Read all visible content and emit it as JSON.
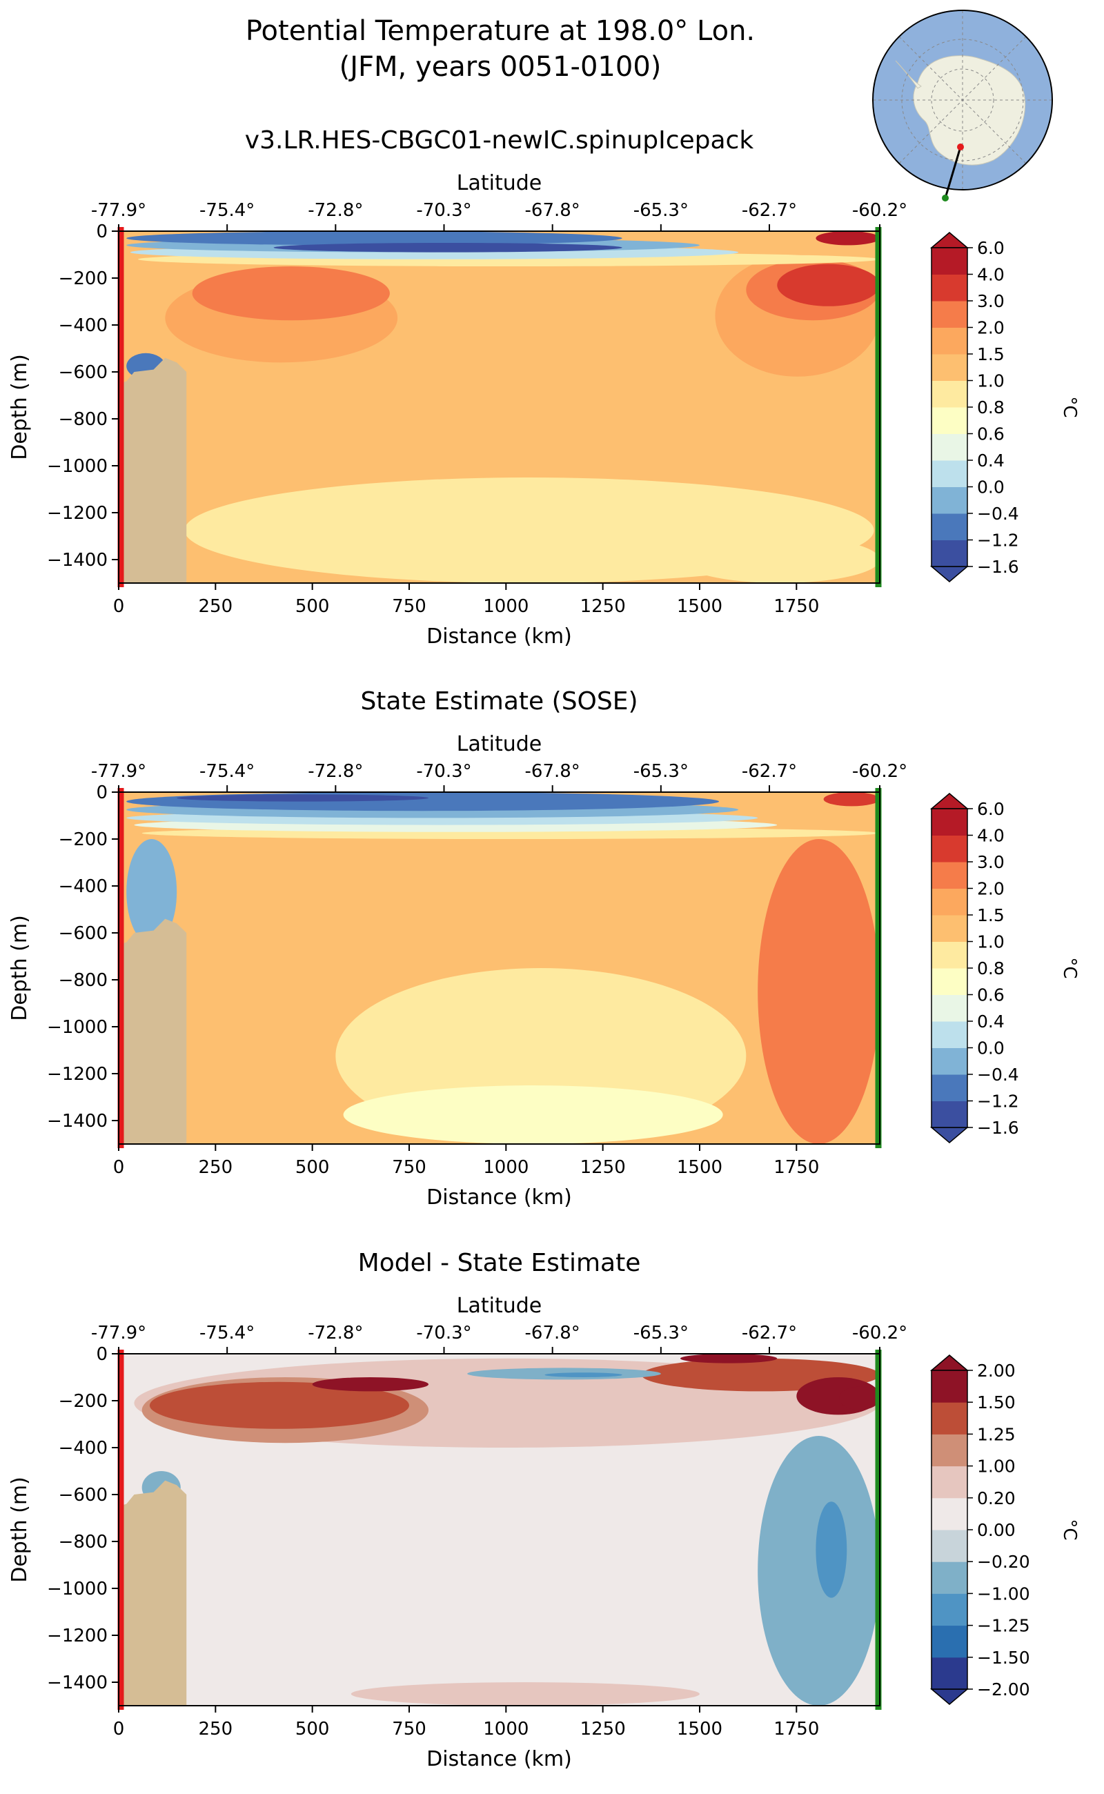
{
  "figure": {
    "title_line1": "Potential Temperature at 198.0° Lon.",
    "title_line2": "(JFM, years 0051-0100)"
  },
  "colors": {
    "land": "#d5bd95",
    "transect_start": "#e41a1c",
    "transect_end": "#1e8a1e",
    "ocean_inset": "#8fb1dc",
    "land_inset": "#efefe0",
    "line": "#000000"
  },
  "inset_map": {
    "type": "south-polar-stereographic",
    "transect_start_marker": "red-dot",
    "transect_end_marker": "green-dot"
  },
  "chart_data": [
    {
      "type": "heatmap",
      "title": "v3.LR.HES-CBGC01-newIC.spinupIcepack",
      "xlabel": "Distance (km)",
      "ylabel": "Depth (m)",
      "top_axis_label": "Latitude",
      "xlim": [
        0,
        1965
      ],
      "ylim": [
        -1500,
        0
      ],
      "x_ticks": [
        0,
        250,
        500,
        750,
        1000,
        1250,
        1500,
        1750
      ],
      "y_ticks": [
        0,
        -200,
        -400,
        -600,
        -800,
        -1000,
        -1200,
        -1400
      ],
      "top_ticks_km": [
        0,
        280,
        560,
        840,
        1120,
        1400,
        1680,
        1965
      ],
      "top_tick_labels": [
        "-77.9°",
        "-75.4°",
        "-72.8°",
        "-70.3°",
        "-67.8°",
        "-65.3°",
        "-62.7°",
        "-60.2°"
      ],
      "colorbar": {
        "label": "°C",
        "levels": [
          "−1.6",
          "−1.2",
          "−0.4",
          "0.0",
          "0.4",
          "0.6",
          "0.8",
          "1.0",
          "1.5",
          "2.0",
          "3.0",
          "4.0",
          "6.0"
        ],
        "colors": [
          "#3b4fa0",
          "#4a78bb",
          "#80b3d6",
          "#bde0ec",
          "#e9f6e6",
          "#fdfec4",
          "#feeaa0",
          "#fdbf70",
          "#fca85e",
          "#f57c4a",
          "#d83a2e",
          "#b51a26"
        ],
        "extend": "both"
      },
      "fields": {
        "background_value": 1.2,
        "regions": [
          {
            "value": 0.85,
            "x": [
              170,
              1950
            ],
            "depth": [
              -1050,
              -1500
            ]
          },
          {
            "value": 0.85,
            "x": [
              1450,
              1965
            ],
            "depth": [
              -1300,
              -1500
            ]
          },
          {
            "value": 1.7,
            "x": [
              120,
              720
            ],
            "depth": [
              -180,
              -560
            ]
          },
          {
            "value": 2.4,
            "x": [
              190,
              700
            ],
            "depth": [
              -150,
              -380
            ]
          },
          {
            "value": 1.7,
            "x": [
              1540,
              1965
            ],
            "depth": [
              -100,
              -620
            ]
          },
          {
            "value": 2.4,
            "x": [
              1620,
              1965
            ],
            "depth": [
              -120,
              -380
            ]
          },
          {
            "value": 3.5,
            "x": [
              1700,
              1965
            ],
            "depth": [
              -140,
              -320
            ]
          },
          {
            "value": 0.9,
            "x": [
              50,
              1965
            ],
            "depth": [
              -90,
              -150
            ]
          },
          {
            "value": 0.2,
            "x": [
              30,
              1600
            ],
            "depth": [
              -60,
              -120
            ]
          },
          {
            "value": -0.2,
            "x": [
              20,
              1500
            ],
            "depth": [
              -30,
              -90
            ]
          },
          {
            "value": -0.8,
            "x": [
              20,
              1300
            ],
            "depth": [
              0,
              -60
            ]
          },
          {
            "value": -1.4,
            "x": [
              400,
              1300
            ],
            "depth": [
              -50,
              -90
            ]
          },
          {
            "value": -0.8,
            "x": [
              20,
              120
            ],
            "depth": [
              -520,
              -630
            ]
          },
          {
            "value": 4.5,
            "x": [
              1800,
              1965
            ],
            "depth": [
              0,
              -60
            ]
          }
        ]
      }
    },
    {
      "type": "heatmap",
      "title": "State Estimate (SOSE)",
      "xlabel": "Distance (km)",
      "ylabel": "Depth (m)",
      "top_axis_label": "Latitude",
      "xlim": [
        0,
        1965
      ],
      "ylim": [
        -1500,
        0
      ],
      "x_ticks": [
        0,
        250,
        500,
        750,
        1000,
        1250,
        1500,
        1750
      ],
      "y_ticks": [
        0,
        -200,
        -400,
        -600,
        -800,
        -1000,
        -1200,
        -1400
      ],
      "top_ticks_km": [
        0,
        280,
        560,
        840,
        1120,
        1400,
        1680,
        1965
      ],
      "top_tick_labels": [
        "-77.9°",
        "-75.4°",
        "-72.8°",
        "-70.3°",
        "-67.8°",
        "-65.3°",
        "-62.7°",
        "-60.2°"
      ],
      "colorbar": {
        "label": "°C",
        "levels": [
          "−1.6",
          "−1.2",
          "−0.4",
          "0.0",
          "0.4",
          "0.6",
          "0.8",
          "1.0",
          "1.5",
          "2.0",
          "3.0",
          "4.0",
          "6.0"
        ],
        "colors": [
          "#3b4fa0",
          "#4a78bb",
          "#80b3d6",
          "#bde0ec",
          "#e9f6e6",
          "#fdfec4",
          "#feeaa0",
          "#fdbf70",
          "#fca85e",
          "#f57c4a",
          "#d83a2e",
          "#b51a26"
        ],
        "extend": "both"
      },
      "fields": {
        "background_value": 1.2,
        "regions": [
          {
            "value": 0.85,
            "x": [
              560,
              1620
            ],
            "depth": [
              -750,
              -1500
            ]
          },
          {
            "value": 0.7,
            "x": [
              580,
              1560
            ],
            "depth": [
              -1250,
              -1500
            ]
          },
          {
            "value": 2.4,
            "x": [
              1650,
              1965
            ],
            "depth": [
              -200,
              -1500
            ]
          },
          {
            "value": 0.9,
            "x": [
              60,
              1965
            ],
            "depth": [
              -150,
              -200
            ]
          },
          {
            "value": 0.5,
            "x": [
              40,
              1700
            ],
            "depth": [
              -110,
              -170
            ]
          },
          {
            "value": 0.2,
            "x": [
              20,
              1650
            ],
            "depth": [
              -80,
              -140
            ]
          },
          {
            "value": -0.2,
            "x": [
              20,
              1600
            ],
            "depth": [
              -40,
              -110
            ]
          },
          {
            "value": -0.8,
            "x": [
              20,
              1550
            ],
            "depth": [
              0,
              -80
            ]
          },
          {
            "value": -1.4,
            "x": [
              150,
              800
            ],
            "depth": [
              -10,
              -40
            ]
          },
          {
            "value": -0.2,
            "x": [
              20,
              150
            ],
            "depth": [
              -200,
              -650
            ]
          },
          {
            "value": 3.5,
            "x": [
              1820,
              1965
            ],
            "depth": [
              0,
              -60
            ]
          }
        ]
      }
    },
    {
      "type": "heatmap",
      "title": "Model - State Estimate",
      "xlabel": "Distance (km)",
      "ylabel": "Depth (m)",
      "top_axis_label": "Latitude",
      "xlim": [
        0,
        1965
      ],
      "ylim": [
        -1500,
        0
      ],
      "x_ticks": [
        0,
        250,
        500,
        750,
        1000,
        1250,
        1500,
        1750
      ],
      "y_ticks": [
        0,
        -200,
        -400,
        -600,
        -800,
        -1000,
        -1200,
        -1400
      ],
      "top_ticks_km": [
        0,
        280,
        560,
        840,
        1120,
        1400,
        1680,
        1965
      ],
      "top_tick_labels": [
        "-77.9°",
        "-75.4°",
        "-72.8°",
        "-70.3°",
        "-67.8°",
        "-65.3°",
        "-62.7°",
        "-60.2°"
      ],
      "colorbar": {
        "label": "°C",
        "levels": [
          "−2.00",
          "−1.50",
          "−1.25",
          "−1.00",
          "−0.20",
          "0.00",
          "0.20",
          "1.00",
          "1.25",
          "1.50",
          "2.00"
        ],
        "colors": [
          "#2b3a8e",
          "#2a6fb0",
          "#4f94c4",
          "#7fb0c8",
          "#c8d4da",
          "#efe9e8",
          "#e6c6bf",
          "#cf8f77",
          "#bd4e37",
          "#8e1326"
        ],
        "extend": "both"
      },
      "fields": {
        "background_value": 0.1,
        "regions": [
          {
            "value": 0.5,
            "x": [
              40,
              1965
            ],
            "depth": [
              -20,
              -400
            ]
          },
          {
            "value": 1.1,
            "x": [
              60,
              800
            ],
            "depth": [
              -100,
              -380
            ]
          },
          {
            "value": 1.35,
            "x": [
              80,
              750
            ],
            "depth": [
              -120,
              -320
            ]
          },
          {
            "value": 1.7,
            "x": [
              500,
              800
            ],
            "depth": [
              -100,
              -160
            ]
          },
          {
            "value": -0.5,
            "x": [
              1650,
              1965
            ],
            "depth": [
              -350,
              -1500
            ]
          },
          {
            "value": -1.1,
            "x": [
              1800,
              1880
            ],
            "depth": [
              -630,
              -1040
            ]
          },
          {
            "value": 1.35,
            "x": [
              1350,
              1965
            ],
            "depth": [
              -20,
              -160
            ]
          },
          {
            "value": 1.7,
            "x": [
              1450,
              1700
            ],
            "depth": [
              0,
              -40
            ]
          },
          {
            "value": 1.7,
            "x": [
              1750,
              1965
            ],
            "depth": [
              -100,
              -260
            ]
          },
          {
            "value": 2.2,
            "x": [
              1860,
              1965
            ],
            "depth": [
              -140,
              -240
            ]
          },
          {
            "value": -0.5,
            "x": [
              900,
              1400
            ],
            "depth": [
              -60,
              -110
            ]
          },
          {
            "value": -1.1,
            "x": [
              1100,
              1300
            ],
            "depth": [
              -80,
              -100
            ]
          },
          {
            "value": 0.5,
            "x": [
              600,
              1500
            ],
            "depth": [
              -1400,
              -1500
            ]
          },
          {
            "value": -0.5,
            "x": [
              60,
              160
            ],
            "depth": [
              -500,
              -640
            ]
          }
        ]
      }
    }
  ]
}
